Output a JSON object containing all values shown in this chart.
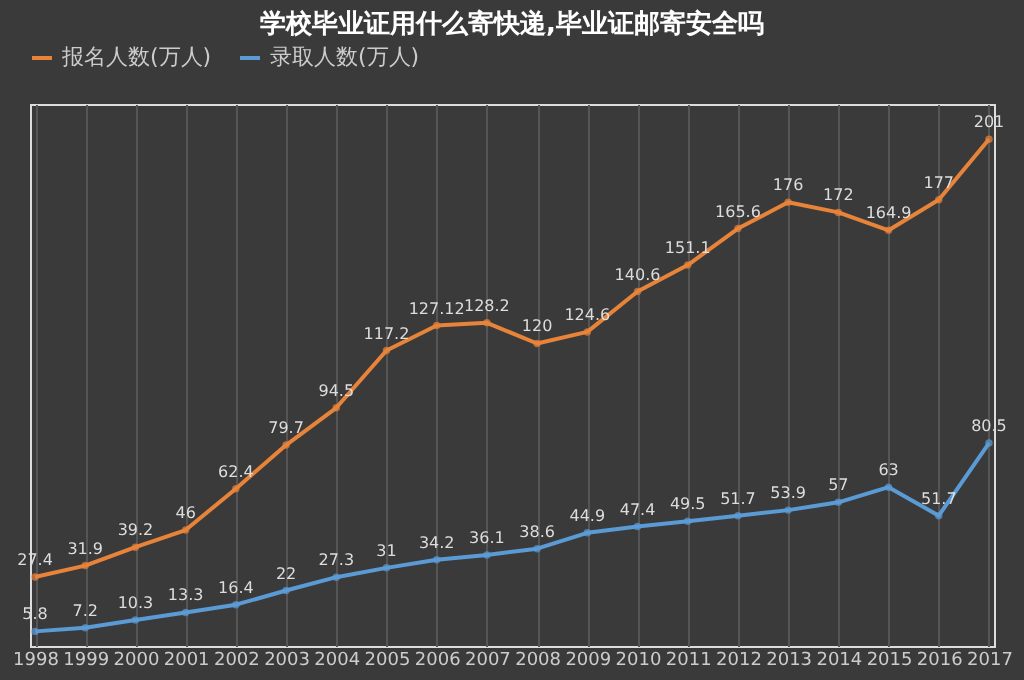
{
  "chart_data": {
    "type": "line",
    "title": "学校毕业证用什么寄快递,毕业证邮寄安全吗",
    "categories": [
      "1998",
      "1999",
      "2000",
      "2001",
      "2002",
      "2003",
      "2004",
      "2005",
      "2006",
      "2007",
      "2008",
      "2009",
      "2010",
      "2011",
      "2012",
      "2013",
      "2014",
      "2015",
      "2016",
      "2017"
    ],
    "series": [
      {
        "name": "报名人数(万人)",
        "color": "#e8833a",
        "values": [
          27.4,
          31.9,
          39.2,
          46,
          62.4,
          79.7,
          94.5,
          117.2,
          127.12,
          128.2,
          120,
          124.6,
          140.6,
          151.1,
          165.6,
          176,
          172,
          164.9,
          177,
          201
        ]
      },
      {
        "name": "录取人数(万人)",
        "color": "#5b9bd5",
        "values": [
          5.8,
          7.2,
          10.3,
          13.3,
          16.4,
          22,
          27.3,
          31,
          34.2,
          36.1,
          38.6,
          44.9,
          47.4,
          49.5,
          51.7,
          53.9,
          57,
          63,
          51.7,
          80.5
        ]
      }
    ],
    "ylim": [
      0,
      215
    ],
    "data_labels": true,
    "grid": "x",
    "legend": "top",
    "tick_labels": "x",
    "marker": "circle",
    "line_style": "solid"
  }
}
